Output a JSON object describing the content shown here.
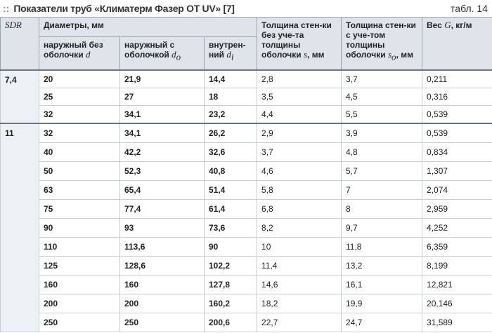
{
  "header": {
    "title": "Показатели труб «Климатерм Фазер ОТ UV» [7]",
    "table_no": "табл. 14"
  },
  "table": {
    "columns": {
      "sdr": {
        "symbol": "SDR"
      },
      "diameters": {
        "text": "Диаметры, мм"
      },
      "d": {
        "text": "наружный без оболочки",
        "symbol": "d"
      },
      "do": {
        "text": "наружный с оболочкой",
        "symbol": "d",
        "sub": "o"
      },
      "di": {
        "text": "внутрен-ний",
        "symbol": "d",
        "sub": "i"
      },
      "s": {
        "text": "Толщина стен-ки без уче-та толщины оболочки",
        "symbol": "s",
        "unit": ", мм"
      },
      "so": {
        "text": "Толщина стен-ки с уче-том толщины оболочки",
        "symbol": "s",
        "sub": "o",
        "unit": ", мм"
      },
      "g": {
        "text": "Вес",
        "symbol": "G",
        "unit": ", кг/м"
      }
    },
    "groups": [
      {
        "sdr": "7,4",
        "rows": [
          [
            "20",
            "21,9",
            "14,4",
            "2,8",
            "3,7",
            "0,211"
          ],
          [
            "25",
            "27",
            "18",
            "3,5",
            "4,5",
            "0,316"
          ],
          [
            "32",
            "34,1",
            "23,2",
            "4,4",
            "5,5",
            "0,539"
          ]
        ]
      },
      {
        "sdr": "11",
        "rows": [
          [
            "32",
            "34,1",
            "26,2",
            "2,9",
            "3,9",
            "0,539"
          ],
          [
            "40",
            "42,2",
            "32,6",
            "3,7",
            "4,8",
            "0,834"
          ],
          [
            "50",
            "52,3",
            "40,8",
            "4,6",
            "5,7",
            "1,307"
          ],
          [
            "63",
            "65,4",
            "51,4",
            "5,8",
            "7",
            "2,074"
          ],
          [
            "75",
            "77,4",
            "61,4",
            "6,8",
            "8",
            "2,959"
          ],
          [
            "90",
            "93",
            "73,6",
            "8,2",
            "9,7",
            "4,252"
          ],
          [
            "110",
            "113,6",
            "90",
            "10",
            "11,8",
            "6,359"
          ],
          [
            "125",
            "128,6",
            "102,2",
            "11,4",
            "13,2",
            "8,199"
          ],
          [
            "160",
            "160",
            "127,8",
            "14,6",
            "16,1",
            "12,821"
          ],
          [
            "200",
            "200",
            "160,2",
            "18,2",
            "19,9",
            "20,146"
          ],
          [
            "250",
            "250",
            "200,6",
            "22,7",
            "24,7",
            "31,589"
          ]
        ]
      }
    ]
  }
}
